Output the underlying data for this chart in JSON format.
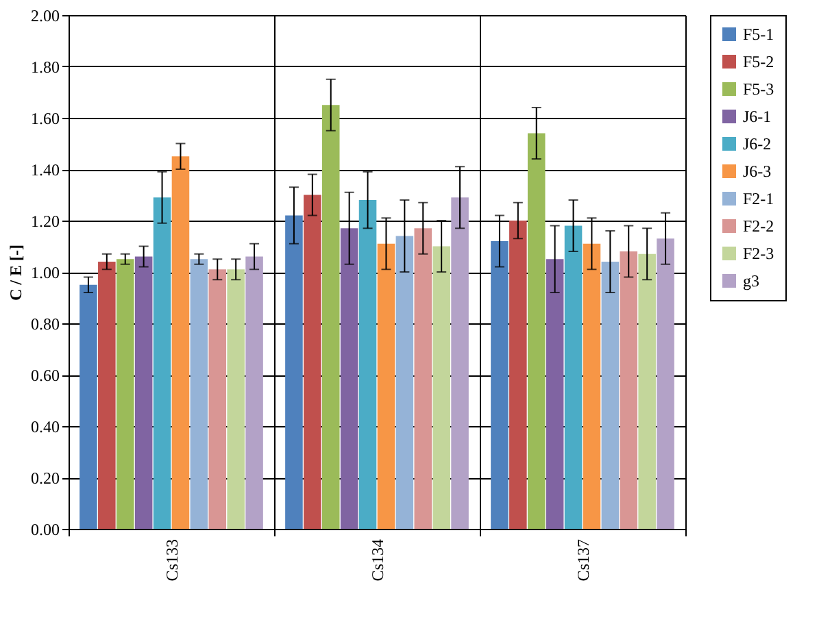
{
  "chart_data": {
    "type": "bar",
    "ylabel": "C / E [-]",
    "categories": [
      "Cs133",
      "Cs134",
      "Cs137"
    ],
    "series": [
      {
        "name": "F5-1",
        "color": "#4f81bd",
        "values": [
          0.95,
          1.22,
          1.12
        ],
        "errors": [
          0.03,
          0.11,
          0.1
        ]
      },
      {
        "name": "F5-2",
        "color": "#c0504d",
        "values": [
          1.04,
          1.3,
          1.2
        ],
        "errors": [
          0.03,
          0.08,
          0.07
        ]
      },
      {
        "name": "F5-3",
        "color": "#9bbb59",
        "values": [
          1.05,
          1.65,
          1.54
        ],
        "errors": [
          0.02,
          0.1,
          0.1
        ]
      },
      {
        "name": "J6-1",
        "color": "#8064a2",
        "values": [
          1.06,
          1.17,
          1.05
        ],
        "errors": [
          0.04,
          0.14,
          0.13
        ]
      },
      {
        "name": "J6-2",
        "color": "#4bacc6",
        "values": [
          1.29,
          1.28,
          1.18
        ],
        "errors": [
          0.1,
          0.11,
          0.1
        ]
      },
      {
        "name": "J6-3",
        "color": "#f79646",
        "values": [
          1.45,
          1.11,
          1.11
        ],
        "errors": [
          0.05,
          0.1,
          0.1
        ]
      },
      {
        "name": "F2-1",
        "color": "#95b3d7",
        "values": [
          1.05,
          1.14,
          1.04
        ],
        "errors": [
          0.02,
          0.14,
          0.12
        ]
      },
      {
        "name": "F2-2",
        "color": "#d99694",
        "values": [
          1.01,
          1.17,
          1.08
        ],
        "errors": [
          0.04,
          0.1,
          0.1
        ]
      },
      {
        "name": "F2-3",
        "color": "#c3d69b",
        "values": [
          1.01,
          1.1,
          1.07
        ],
        "errors": [
          0.04,
          0.1,
          0.1
        ]
      },
      {
        "name": "g3",
        "color": "#b3a2c7",
        "values": [
          1.06,
          1.29,
          1.13
        ],
        "errors": [
          0.05,
          0.12,
          0.1
        ]
      }
    ],
    "ylim": [
      0,
      2
    ],
    "yticks": [
      {
        "value": 0,
        "label": "0.00"
      },
      {
        "value": 0.2,
        "label": "0.20"
      },
      {
        "value": 0.4,
        "label": "0.40"
      },
      {
        "value": 0.6,
        "label": "0.60"
      },
      {
        "value": 0.8,
        "label": "0.80"
      },
      {
        "value": 1,
        "label": "1.00"
      },
      {
        "value": 1.2,
        "label": "1.20"
      },
      {
        "value": 1.4,
        "label": "1.40"
      },
      {
        "value": 1.6,
        "label": "1.60"
      },
      {
        "value": 1.8,
        "label": "1.80"
      },
      {
        "value": 2,
        "label": "2.00"
      }
    ],
    "grid": true,
    "legend": "right"
  }
}
